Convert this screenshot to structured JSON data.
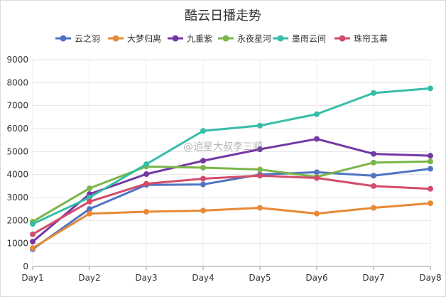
{
  "chart_data": {
    "type": "line",
    "title": "酷云日播走势",
    "xlabel": "",
    "ylabel": "",
    "categories": [
      "Day1",
      "Day2",
      "Day3",
      "Day4",
      "Day5",
      "Day6",
      "Day7",
      "Day8"
    ],
    "ylim": [
      0,
      9000
    ],
    "yticks": [
      "0",
      "1000",
      "2000",
      "3000",
      "4000",
      "5000",
      "6000",
      "7000",
      "8000",
      "9000"
    ],
    "grid": true,
    "legend_position": "top",
    "series": [
      {
        "name": "云之羽",
        "color": "#4f74c2",
        "values": [
          750,
          2500,
          3550,
          3570,
          4000,
          4100,
          3950,
          4250
        ]
      },
      {
        "name": "大梦归离",
        "color": "#e88a35",
        "values": [
          800,
          2300,
          2380,
          2430,
          2550,
          2300,
          2550,
          2750
        ]
      },
      {
        "name": "九重紫",
        "color": "#7438a3",
        "values": [
          1080,
          3150,
          4020,
          4600,
          5100,
          5550,
          4900,
          4820
        ]
      },
      {
        "name": "永夜星河",
        "color": "#7ab648",
        "values": [
          1950,
          3400,
          4350,
          4300,
          4220,
          3900,
          4520,
          4570
        ]
      },
      {
        "name": "墨雨云间",
        "color": "#36bda8",
        "values": [
          1850,
          3000,
          4450,
          5900,
          6130,
          6630,
          7550,
          7750
        ]
      },
      {
        "name": "珠帘玉幕",
        "color": "#d34c6a",
        "values": [
          1400,
          2820,
          3600,
          3820,
          3950,
          3850,
          3500,
          3380
        ]
      }
    ]
  },
  "watermark": "@追星大叔李三顺"
}
